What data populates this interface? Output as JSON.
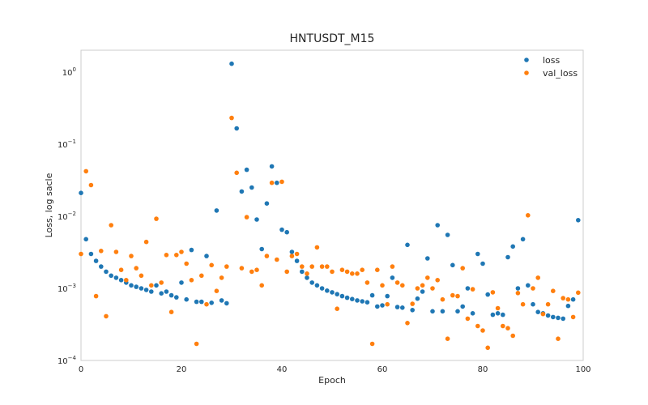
{
  "chart_data": {
    "type": "scatter",
    "title": "HNTUSDT_M15",
    "xlabel": "Epoch",
    "ylabel": "Loss, log sacle",
    "xlim": [
      0,
      100
    ],
    "ylim": [
      0.0001,
      2.0
    ],
    "yscale": "log",
    "grid": true,
    "legend": "top-right",
    "x_ticks": [
      0,
      20,
      40,
      60,
      80,
      100
    ],
    "y_ticks": [
      {
        "value": 0.0001,
        "base": "10",
        "exp": "−4"
      },
      {
        "value": 0.001,
        "base": "10",
        "exp": "−3"
      },
      {
        "value": 0.01,
        "base": "10",
        "exp": "−2"
      },
      {
        "value": 0.1,
        "base": "10",
        "exp": "−1"
      },
      {
        "value": 1,
        "base": "10",
        "exp": "0"
      }
    ],
    "series": [
      {
        "name": "loss",
        "color": "#1f77b4",
        "x": [
          0,
          1,
          2,
          3,
          4,
          5,
          6,
          7,
          8,
          9,
          10,
          11,
          12,
          13,
          14,
          15,
          16,
          17,
          18,
          19,
          20,
          21,
          22,
          23,
          24,
          25,
          26,
          27,
          28,
          29,
          30,
          31,
          32,
          33,
          34,
          35,
          36,
          37,
          38,
          39,
          40,
          41,
          42,
          43,
          44,
          45,
          46,
          47,
          48,
          49,
          50,
          51,
          52,
          53,
          54,
          55,
          56,
          57,
          58,
          59,
          60,
          61,
          62,
          63,
          64,
          65,
          66,
          67,
          68,
          69,
          70,
          71,
          72,
          73,
          74,
          75,
          76,
          77,
          78,
          79,
          80,
          81,
          82,
          83,
          84,
          85,
          86,
          87,
          88,
          89,
          90,
          91,
          92,
          93,
          94,
          95,
          96,
          97,
          98,
          99
        ],
        "y": [
          0.021,
          0.0048,
          0.003,
          0.0024,
          0.002,
          0.0017,
          0.0015,
          0.0014,
          0.0013,
          0.0012,
          0.0011,
          0.00105,
          0.001,
          0.00095,
          0.0009,
          0.0011,
          0.00085,
          0.0009,
          0.0008,
          0.00075,
          0.0012,
          0.0007,
          0.0034,
          0.00065,
          0.00065,
          0.0028,
          0.00063,
          0.012,
          0.00068,
          0.00062,
          1.3,
          0.165,
          0.022,
          0.044,
          0.025,
          0.009,
          0.0035,
          0.015,
          0.049,
          0.029,
          0.0065,
          0.006,
          0.0032,
          0.0024,
          0.0017,
          0.0014,
          0.0012,
          0.0011,
          0.001,
          0.00093,
          0.00088,
          0.00083,
          0.00078,
          0.00074,
          0.00071,
          0.00068,
          0.00066,
          0.00064,
          0.0008,
          0.00056,
          0.00058,
          0.00078,
          0.0014,
          0.00055,
          0.00054,
          0.004,
          0.0005,
          0.00072,
          0.0009,
          0.0026,
          0.00048,
          0.0075,
          0.00048,
          0.0055,
          0.0021,
          0.00048,
          0.00056,
          0.001,
          0.00045,
          0.003,
          0.0022,
          0.00082,
          0.00043,
          0.00045,
          0.00043,
          0.0027,
          0.0038,
          0.001,
          0.0048,
          0.0011,
          0.0006,
          0.00047,
          0.00045,
          0.00042,
          0.0004,
          0.00039,
          0.00038,
          0.00057,
          0.0007,
          0.0088
        ]
      },
      {
        "name": "val_loss",
        "color": "#ff7f0e",
        "x": [
          0,
          1,
          2,
          3,
          4,
          5,
          6,
          7,
          8,
          9,
          10,
          11,
          12,
          13,
          14,
          15,
          16,
          17,
          18,
          19,
          20,
          21,
          22,
          23,
          24,
          25,
          26,
          27,
          28,
          29,
          30,
          31,
          32,
          33,
          34,
          35,
          36,
          37,
          38,
          39,
          40,
          41,
          42,
          43,
          44,
          45,
          46,
          47,
          48,
          49,
          50,
          51,
          52,
          53,
          54,
          55,
          56,
          57,
          58,
          59,
          60,
          61,
          62,
          63,
          64,
          65,
          66,
          67,
          68,
          69,
          70,
          71,
          72,
          73,
          74,
          75,
          76,
          77,
          78,
          79,
          80,
          81,
          82,
          83,
          84,
          85,
          86,
          87,
          88,
          89,
          90,
          91,
          92,
          93,
          94,
          95,
          96,
          97,
          98,
          99
        ],
        "y": [
          0.003,
          0.042,
          0.027,
          0.00078,
          0.0033,
          0.00041,
          0.0075,
          0.0032,
          0.0018,
          0.0013,
          0.0028,
          0.0019,
          0.0015,
          0.0044,
          0.0011,
          0.0092,
          0.0012,
          0.0029,
          0.00047,
          0.0029,
          0.0032,
          0.0022,
          0.0013,
          0.00017,
          0.0015,
          0.0006,
          0.0021,
          0.00092,
          0.0014,
          0.002,
          0.23,
          0.04,
          0.0019,
          0.0097,
          0.0017,
          0.0018,
          0.0011,
          0.0028,
          0.029,
          0.0025,
          0.03,
          0.0017,
          0.0028,
          0.003,
          0.002,
          0.0016,
          0.002,
          0.0037,
          0.002,
          0.002,
          0.0017,
          0.00052,
          0.0018,
          0.0017,
          0.0016,
          0.0016,
          0.0018,
          0.0012,
          0.00017,
          0.0018,
          0.0011,
          0.0006,
          0.002,
          0.0012,
          0.0011,
          0.00033,
          0.00061,
          0.001,
          0.0011,
          0.0014,
          0.001,
          0.0013,
          0.0007,
          0.0002,
          0.0008,
          0.00078,
          0.0019,
          0.00038,
          0.00097,
          0.0003,
          0.00026,
          0.00015,
          0.00088,
          0.00053,
          0.0003,
          0.00028,
          0.00022,
          0.00086,
          0.0006,
          0.0103,
          0.001,
          0.0014,
          0.00044,
          0.0006,
          0.00092,
          0.0002,
          0.00073,
          0.0007,
          0.0004,
          0.00087
        ]
      }
    ]
  }
}
